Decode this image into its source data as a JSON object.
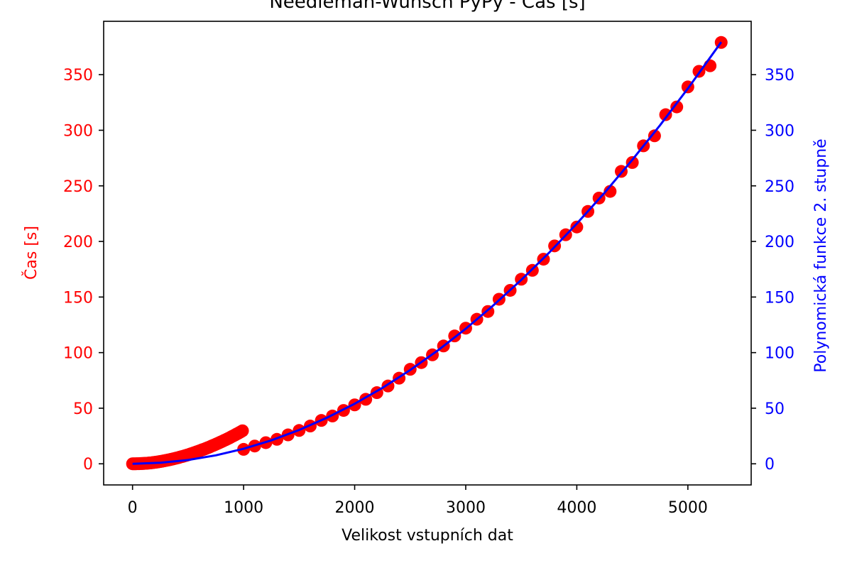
{
  "chart_data": {
    "type": "scatter",
    "title": "Needleman-Wunsch PyPy - Čas [s]",
    "xlabel": "Velikost vstupních dat",
    "ylabel_left": "Čas [s]",
    "ylabel_right": "Polynomická funkce 2. stupně",
    "xlim": [
      -260,
      5570
    ],
    "ylim": [
      -19,
      398
    ],
    "x_ticks": [
      0,
      1000,
      2000,
      3000,
      4000,
      5000
    ],
    "y_ticks_left": [
      0,
      50,
      100,
      150,
      200,
      250,
      300,
      350
    ],
    "y_ticks_right": [
      0,
      50,
      100,
      150,
      200,
      250,
      300,
      350
    ],
    "grid": false,
    "colors": {
      "scatter": "#ff0000",
      "fit_line": "#0000ff",
      "left_axis_text": "#ff0000",
      "right_axis_text": "#0000ff",
      "frame": "#000000"
    },
    "series": [
      {
        "kind": "scatter",
        "x": [
          0,
          10,
          20,
          30,
          40,
          50,
          60,
          70,
          80,
          90,
          100,
          110,
          120,
          130,
          140,
          150,
          160,
          170,
          180,
          190,
          200,
          210,
          220,
          230,
          240,
          250,
          260,
          270,
          280,
          290,
          300,
          310,
          320,
          330,
          340,
          350,
          360,
          370,
          380,
          390,
          400,
          410,
          420,
          430,
          440,
          450,
          460,
          470,
          480,
          490,
          500,
          510,
          520,
          530,
          540,
          550,
          560,
          570,
          580,
          590,
          600,
          610,
          620,
          630,
          640,
          650,
          660,
          670,
          680,
          690,
          700,
          710,
          720,
          730,
          740,
          750,
          760,
          770,
          780,
          790,
          800,
          810,
          820,
          830,
          840,
          850,
          860,
          870,
          880,
          890,
          900,
          910,
          920,
          930,
          940,
          950,
          960,
          970,
          980,
          990,
          1000,
          1100,
          1200,
          1300,
          1400,
          1500,
          1600,
          1700,
          1800,
          1900,
          2000,
          2100,
          2200,
          2300,
          2400,
          2500,
          2600,
          2700,
          2800,
          2900,
          3000,
          3100,
          3200,
          3300,
          3400,
          3500,
          3600,
          3700,
          3800,
          3900,
          4000,
          4100,
          4200,
          4300,
          4400,
          4500,
          4600,
          4700,
          4800,
          4900,
          5000,
          5100,
          5200,
          5300
        ],
        "y": [
          0.0,
          0.0,
          0.0,
          0.0,
          0.1,
          0.1,
          0.1,
          0.2,
          0.2,
          0.3,
          0.3,
          0.4,
          0.5,
          0.5,
          0.6,
          0.7,
          0.8,
          0.9,
          1.0,
          1.2,
          1.3,
          1.4,
          1.6,
          1.7,
          1.9,
          2.1,
          2.2,
          2.4,
          2.6,
          2.8,
          3.0,
          3.2,
          3.4,
          3.6,
          3.8,
          4.1,
          4.3,
          4.5,
          4.8,
          5.0,
          5.3,
          5.5,
          5.8,
          6.1,
          6.4,
          6.6,
          6.9,
          7.2,
          7.5,
          7.8,
          8.1,
          8.4,
          8.8,
          9.1,
          9.4,
          9.8,
          10.1,
          10.5,
          10.8,
          11.2,
          11.5,
          11.9,
          12.3,
          12.7,
          13.0,
          13.4,
          13.8,
          14.2,
          14.6,
          15.0,
          15.4,
          15.9,
          16.3,
          16.7,
          17.1,
          17.6,
          18.0,
          18.5,
          18.9,
          19.4,
          19.8,
          20.3,
          20.8,
          21.3,
          21.7,
          22.2,
          22.7,
          23.2,
          23.7,
          24.3,
          24.8,
          25.3,
          25.8,
          26.4,
          26.9,
          27.4,
          28.0,
          28.5,
          29.1,
          29.7,
          13,
          16,
          19,
          22,
          26,
          30,
          34,
          39,
          43,
          48,
          53,
          58,
          64,
          70,
          77,
          85,
          91,
          98,
          106,
          115,
          122,
          130,
          137,
          148,
          156,
          166,
          174,
          184,
          196,
          206,
          213,
          227,
          239,
          245,
          263,
          271,
          286,
          295,
          314,
          321,
          339,
          353,
          358,
          379
        ]
      },
      {
        "kind": "line",
        "x": [
          0,
          250,
          500,
          750,
          1000,
          1250,
          1500,
          1750,
          2000,
          2250,
          2500,
          2750,
          3000,
          3250,
          3500,
          3750,
          4000,
          4250,
          4500,
          4750,
          5000,
          5300
        ],
        "y": [
          0.0,
          0.9,
          3.4,
          7.6,
          13.5,
          21.1,
          30.4,
          41.4,
          54.0,
          68.3,
          84.4,
          102.1,
          121.5,
          142.6,
          165.4,
          189.8,
          216.0,
          243.8,
          273.4,
          304.6,
          337.5,
          379.3
        ]
      }
    ]
  }
}
